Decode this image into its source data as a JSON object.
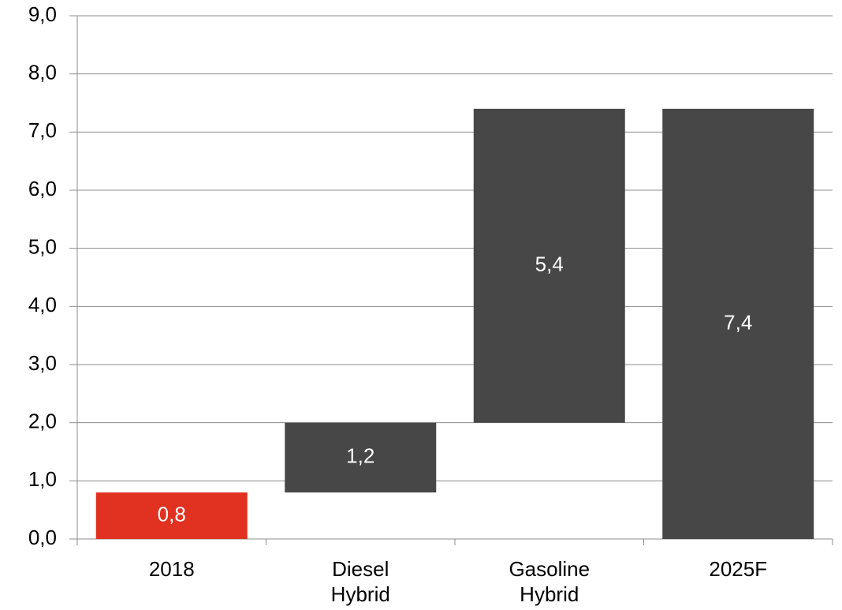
{
  "chart_data": {
    "type": "waterfall",
    "categories": [
      "2018",
      "Diesel Hybrid",
      "Gasoline Hybrid",
      "2025F"
    ],
    "values": [
      0.8,
      1.2,
      5.4,
      7.4
    ],
    "value_labels": [
      "0,8",
      "1,2",
      "5,4",
      "7,4"
    ],
    "totals": [
      false,
      false,
      false,
      true
    ],
    "colors": [
      "#e03121",
      "#474747",
      "#474747",
      "#474747"
    ],
    "ylim": [
      0,
      9
    ],
    "yticks": [
      {
        "value": 0,
        "label": "0,0"
      },
      {
        "value": 1,
        "label": "1,0"
      },
      {
        "value": 2,
        "label": "2,0"
      },
      {
        "value": 3,
        "label": "3,0"
      },
      {
        "value": 4,
        "label": "4,0"
      },
      {
        "value": 5,
        "label": "5,0"
      },
      {
        "value": 6,
        "label": "6,0"
      },
      {
        "value": 7,
        "label": "7,0"
      },
      {
        "value": 8,
        "label": "8,0"
      },
      {
        "value": 9,
        "label": "9,0"
      }
    ],
    "grid": true
  }
}
